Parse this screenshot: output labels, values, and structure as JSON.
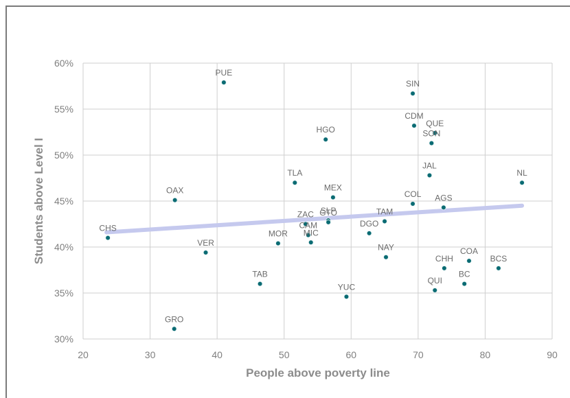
{
  "colors": {
    "point": "#0b6b73",
    "trendline": "#c5c9ee",
    "grid": "#cfcfcf",
    "tick_text": "#7f7f7f",
    "axis_title": "#8c8c8c"
  },
  "chart_data": {
    "type": "scatter",
    "title": "",
    "xlabel": "People above poverty line",
    "ylabel": "Students above Level I",
    "xlim": [
      20,
      90
    ],
    "ylim": [
      30,
      60
    ],
    "x_ticks": [
      "20",
      "30",
      "40",
      "50",
      "60",
      "70",
      "80",
      "90"
    ],
    "y_ticks": [
      "30%",
      "35%",
      "40%",
      "45%",
      "50%",
      "55%",
      "60%"
    ],
    "grid": true,
    "legend": "none",
    "trendline": {
      "x": [
        23.5,
        85.5
      ],
      "y": [
        41.6,
        44.5
      ]
    },
    "points": [
      {
        "label": "PUE",
        "x": 41.0,
        "y": 57.9
      },
      {
        "label": "SIN",
        "x": 69.2,
        "y": 56.7
      },
      {
        "label": "CDM",
        "x": 69.4,
        "y": 53.2
      },
      {
        "label": "QUE",
        "x": 72.5,
        "y": 52.4
      },
      {
        "label": "SON",
        "x": 72.0,
        "y": 51.3
      },
      {
        "label": "HGO",
        "x": 56.2,
        "y": 51.7
      },
      {
        "label": "TLA",
        "x": 51.6,
        "y": 47.0
      },
      {
        "label": "JAL",
        "x": 71.7,
        "y": 47.8
      },
      {
        "label": "NL",
        "x": 85.5,
        "y": 47.0
      },
      {
        "label": "OAX",
        "x": 33.7,
        "y": 45.1
      },
      {
        "label": "MEX",
        "x": 57.3,
        "y": 45.4
      },
      {
        "label": "COL",
        "x": 69.2,
        "y": 44.7
      },
      {
        "label": "AGS",
        "x": 73.8,
        "y": 44.3
      },
      {
        "label": "SLP",
        "x": 56.6,
        "y": 42.9
      },
      {
        "label": "ZAC",
        "x": 53.2,
        "y": 42.5
      },
      {
        "label": "GTO",
        "x": 56.6,
        "y": 42.7
      },
      {
        "label": "TAM",
        "x": 65.0,
        "y": 42.8
      },
      {
        "label": "CAM",
        "x": 53.6,
        "y": 41.3
      },
      {
        "label": "DGO",
        "x": 62.7,
        "y": 41.5
      },
      {
        "label": "CHS",
        "x": 23.7,
        "y": 41.0
      },
      {
        "label": "MIC",
        "x": 54.0,
        "y": 40.5
      },
      {
        "label": "MOR",
        "x": 49.1,
        "y": 40.4
      },
      {
        "label": "VER",
        "x": 38.3,
        "y": 39.4
      },
      {
        "label": "NAY",
        "x": 65.2,
        "y": 38.9
      },
      {
        "label": "COA",
        "x": 77.6,
        "y": 38.5
      },
      {
        "label": "CHH",
        "x": 73.9,
        "y": 37.7
      },
      {
        "label": "BCS",
        "x": 82.0,
        "y": 37.7
      },
      {
        "label": "TAB",
        "x": 46.4,
        "y": 36.0
      },
      {
        "label": "BC",
        "x": 76.9,
        "y": 36.0
      },
      {
        "label": "QUI",
        "x": 72.5,
        "y": 35.3
      },
      {
        "label": "YUC",
        "x": 59.3,
        "y": 34.6
      },
      {
        "label": "GRO",
        "x": 33.6,
        "y": 31.1
      }
    ]
  }
}
